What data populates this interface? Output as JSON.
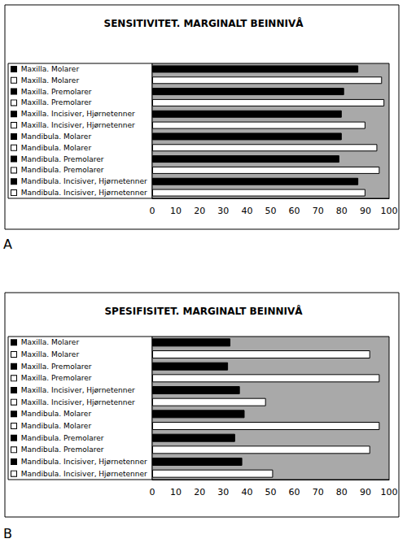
{
  "chart_data": [
    {
      "type": "bar",
      "orientation": "horizontal",
      "title": "SENSITIVITET. MARGINALT BEINNIVÅ",
      "annotation": "A",
      "categories": [
        "Maxilla. Molarer",
        "Maxilla. Molarer",
        "Maxilla. Premolarer",
        "Maxilla. Premolarer",
        "Maxilla. Incisiver, Hjørnetenner",
        "Maxilla. Incisiver, Hjørnetenner",
        "Mandibula. Molarer",
        "Mandibula. Molarer",
        "Mandibula. Premolarer",
        "Mandibula. Premolarer",
        "Mandibula. Incisiver, Hjørnetenner",
        "Mandibula. Incisiver, Hjørnetenner"
      ],
      "values": [
        87,
        97,
        81,
        98,
        80,
        90,
        80,
        95,
        79,
        96,
        87,
        90
      ],
      "colors": [
        "#000000",
        "#ffffff",
        "#000000",
        "#ffffff",
        "#000000",
        "#ffffff",
        "#000000",
        "#ffffff",
        "#000000",
        "#ffffff",
        "#000000",
        "#ffffff"
      ],
      "xlim": [
        0,
        100
      ],
      "xticks": [
        0,
        10,
        20,
        30,
        40,
        50,
        60,
        70,
        80,
        90,
        100
      ],
      "grid": false
    },
    {
      "type": "bar",
      "orientation": "horizontal",
      "title": "SPESIFISITET. MARGINALT BEINNIVÅ",
      "annotation": "B",
      "categories": [
        "Maxilla. Molarer",
        "Maxilla. Molarer",
        "Maxilla. Premolarer",
        "Maxilla. Premolarer",
        "Maxilla. Incisiver, Hjørnetenner",
        "Maxilla. Incisiver, Hjørnetenner",
        "Mandibula. Molarer",
        "Mandibula. Molarer",
        "Mandibula. Premolarer",
        "Mandibula. Premolarer",
        "Mandibula. Incisiver, Hjørnetenner",
        "Mandibula. Incisiver, Hjørnetenner"
      ],
      "values": [
        33,
        92,
        32,
        96,
        37,
        48,
        39,
        96,
        35,
        92,
        38,
        51
      ],
      "colors": [
        "#000000",
        "#ffffff",
        "#000000",
        "#ffffff",
        "#000000",
        "#ffffff",
        "#000000",
        "#ffffff",
        "#000000",
        "#ffffff",
        "#000000",
        "#ffffff"
      ],
      "xlim": [
        0,
        100
      ],
      "xticks": [
        0,
        10,
        20,
        30,
        40,
        50,
        60,
        70,
        80,
        90,
        100
      ],
      "grid": false
    }
  ]
}
